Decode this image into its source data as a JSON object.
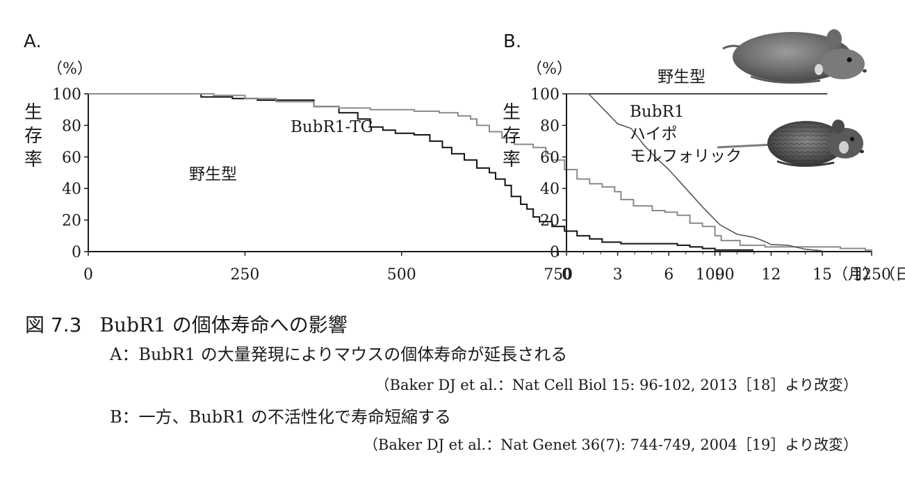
{
  "chart_data": [
    {
      "type": "line",
      "panel_label": "A.",
      "unit_label": "（%）",
      "ylabel": "生存率",
      "x_unit": "（日）",
      "xlim": [
        0,
        1250
      ],
      "ylim": [
        0,
        100
      ],
      "x_ticks": [
        "0",
        "250",
        "500",
        "750",
        "1000",
        "1250"
      ],
      "y_ticks": [
        "0",
        "20",
        "40",
        "60",
        "80",
        "100"
      ],
      "series": [
        {
          "name": "野生型",
          "color": "#111111",
          "step": true,
          "points": [
            [
              0,
              100
            ],
            [
              160,
              100
            ],
            [
              180,
              98
            ],
            [
              230,
              97
            ],
            [
              270,
              96
            ],
            [
              320,
              96
            ],
            [
              360,
              92
            ],
            [
              400,
              88
            ],
            [
              430,
              84
            ],
            [
              450,
              79
            ],
            [
              470,
              77
            ],
            [
              490,
              75
            ],
            [
              520,
              74
            ],
            [
              545,
              70
            ],
            [
              565,
              66
            ],
            [
              580,
              62
            ],
            [
              600,
              58
            ],
            [
              620,
              53
            ],
            [
              640,
              50
            ],
            [
              650,
              46
            ],
            [
              665,
              42
            ],
            [
              675,
              35
            ],
            [
              690,
              30
            ],
            [
              700,
              27
            ],
            [
              710,
              22
            ],
            [
              720,
              19
            ],
            [
              740,
              16
            ],
            [
              760,
              13
            ],
            [
              780,
              10
            ],
            [
              800,
              8
            ],
            [
              820,
              6
            ],
            [
              850,
              5
            ],
            [
              900,
              5
            ],
            [
              940,
              4
            ],
            [
              960,
              3
            ],
            [
              980,
              2
            ],
            [
              1000,
              1
            ],
            [
              1060,
              0
            ]
          ]
        },
        {
          "name": "BubR1-TG",
          "color": "#8a8a8a",
          "step": true,
          "points": [
            [
              0,
              100
            ],
            [
              200,
              99
            ],
            [
              250,
              97
            ],
            [
              300,
              95
            ],
            [
              360,
              92
            ],
            [
              400,
              91
            ],
            [
              450,
              90
            ],
            [
              490,
              90
            ],
            [
              520,
              89
            ],
            [
              560,
              88
            ],
            [
              590,
              86
            ],
            [
              610,
              84
            ],
            [
              620,
              80
            ],
            [
              640,
              76
            ],
            [
              660,
              72
            ],
            [
              680,
              68
            ],
            [
              710,
              66
            ],
            [
              730,
              62
            ],
            [
              740,
              58
            ],
            [
              760,
              52
            ],
            [
              780,
              46
            ],
            [
              800,
              43
            ],
            [
              820,
              41
            ],
            [
              840,
              38
            ],
            [
              850,
              33
            ],
            [
              870,
              29
            ],
            [
              900,
              26
            ],
            [
              920,
              25
            ],
            [
              940,
              23
            ],
            [
              960,
              18
            ],
            [
              980,
              16
            ],
            [
              1000,
              10
            ],
            [
              1010,
              7
            ],
            [
              1040,
              4
            ],
            [
              1080,
              3
            ],
            [
              1200,
              2
            ],
            [
              1240,
              1
            ],
            [
              1250,
              0
            ]
          ]
        }
      ],
      "annotations": [
        "BubR1-TG",
        "野生型"
      ]
    },
    {
      "type": "line",
      "panel_label": "B.",
      "unit_label": "（%）",
      "ylabel": "生存率",
      "x_unit": "（月）",
      "xlim": [
        0,
        15
      ],
      "ylim": [
        0,
        100
      ],
      "x_ticks": [
        "0",
        "3",
        "6",
        "9",
        "12",
        "15"
      ],
      "y_ticks": [
        "0",
        "20",
        "40",
        "60",
        "80",
        "100"
      ],
      "series": [
        {
          "name": "野生型",
          "color": "#111111",
          "step": false,
          "points": [
            [
              0,
              100
            ],
            [
              15.3,
              100
            ]
          ]
        },
        {
          "name": "BubR1ハイポモルフォリック",
          "color": "#555555",
          "step": false,
          "points": [
            [
              0,
              100
            ],
            [
              1.3,
              100
            ],
            [
              3,
              81
            ],
            [
              3.8,
              78
            ],
            [
              4.5,
              68
            ],
            [
              5.2,
              60
            ],
            [
              6,
              52
            ],
            [
              7,
              40
            ],
            [
              8,
              28
            ],
            [
              9,
              17
            ],
            [
              10,
              11
            ],
            [
              11,
              9
            ],
            [
              11.5,
              7
            ],
            [
              12,
              4.5
            ],
            [
              13,
              4
            ],
            [
              14,
              1.5
            ],
            [
              15,
              0.5
            ]
          ]
        }
      ],
      "annotations": [
        "野生型",
        "BubR1",
        "ハイポ",
        "モルフォリック"
      ]
    }
  ],
  "caption": {
    "figure_number": "図 7.3",
    "title": "BubR1 の個体寿命への影響",
    "line_a": "A：BubR1 の大量発現によりマウスの個体寿命が延長される",
    "source_a": "（Baker DJ et al.：Nat Cell Biol 15: 96-102, 2013［18］より改変）",
    "line_b": "B：一方、BubR1 の不活性化で寿命短縮する",
    "source_b": "（Baker DJ et al.：Nat Genet  36(7): 744-749, 2004［19］より改変）"
  },
  "images": [
    {
      "icon": "wild-type-mouse-photo"
    },
    {
      "icon": "bubr1-hypomorphic-mouse-photo"
    }
  ]
}
